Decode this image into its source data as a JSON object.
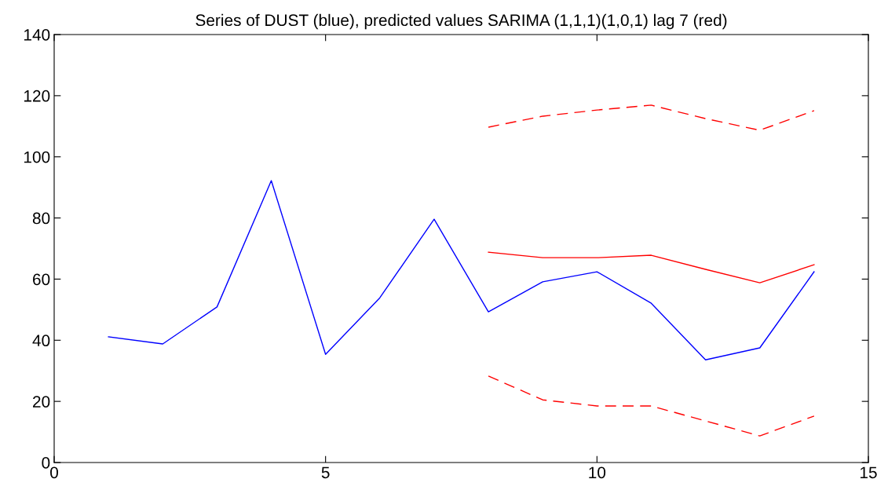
{
  "chart_data": {
    "type": "line",
    "title": "Series of DUST (blue), predicted values SARIMA (1,1,1)(1,0,1) lag 7 (red)",
    "series": [
      {
        "color": "#0000ff",
        "line_style": "solid",
        "x": [
          1,
          2,
          3,
          4,
          5,
          6,
          7,
          8,
          9,
          10,
          11,
          12,
          13,
          14
        ],
        "values": [
          41.1,
          38.8,
          50.9,
          92.2,
          35.4,
          53.9,
          79.6,
          49.3,
          59.1,
          62.4,
          52.1,
          33.6,
          37.5,
          62.4
        ]
      },
      {
        "color": "#ff0000",
        "line_style": "solid",
        "x": [
          8,
          9,
          10,
          11,
          12,
          13,
          14
        ],
        "values": [
          68.8,
          67.0,
          67.0,
          67.8,
          63.2,
          58.8,
          64.7
        ]
      },
      {
        "color": "#ff0000",
        "line_style": "dashed",
        "x": [
          8,
          9,
          10,
          11,
          12,
          13,
          14
        ],
        "values": [
          109.7,
          113.3,
          115.3,
          116.9,
          112.5,
          108.7,
          115.1
        ]
      },
      {
        "color": "#ff0000",
        "line_style": "dashed",
        "x": [
          8,
          9,
          10,
          11,
          12,
          13,
          14
        ],
        "values": [
          28.3,
          20.5,
          18.5,
          18.5,
          13.6,
          8.7,
          15.2
        ]
      }
    ],
    "xlim": [
      0,
      15
    ],
    "xticks": [
      0,
      5,
      10,
      15
    ],
    "ylim": [
      0,
      140
    ],
    "yticks": [
      0,
      20,
      40,
      60,
      80,
      100,
      120,
      140
    ],
    "grid": false,
    "legend": false,
    "marker": "none"
  }
}
